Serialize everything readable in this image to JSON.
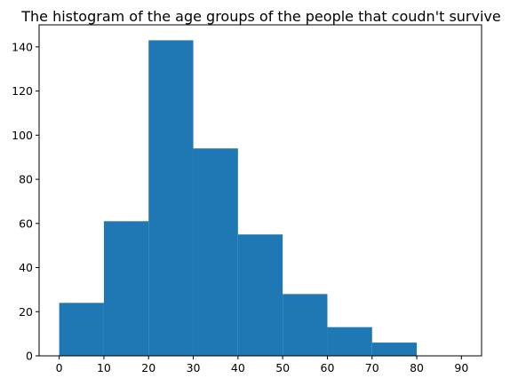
{
  "chart_data": {
    "type": "bar",
    "title": "The histogram of the age groups of the people that coudn't survive",
    "xlabel": "",
    "ylabel": "",
    "bin_edges": [
      0,
      10,
      20,
      30,
      40,
      50,
      60,
      70,
      80
    ],
    "values": [
      24,
      61,
      143,
      94,
      55,
      28,
      13,
      6
    ],
    "xlim": [
      -4.5,
      94.5
    ],
    "ylim": [
      0,
      150
    ],
    "x_ticks": [
      0,
      10,
      20,
      30,
      40,
      50,
      60,
      70,
      80,
      90
    ],
    "y_ticks": [
      0,
      20,
      40,
      60,
      80,
      100,
      120,
      140
    ],
    "bar_color": "#1f77b4",
    "grid": false
  }
}
